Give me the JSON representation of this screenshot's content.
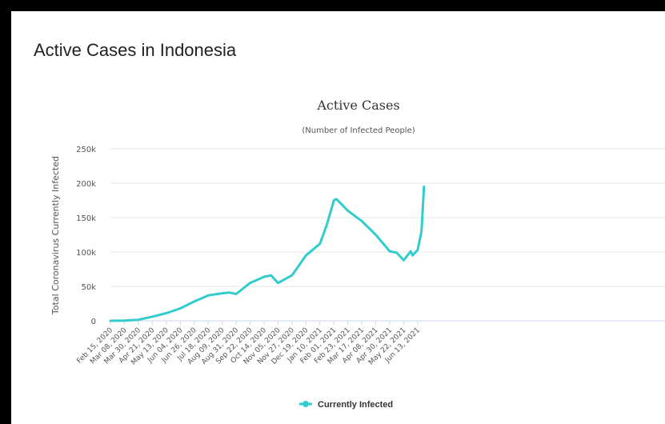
{
  "page": {
    "title": "Active Cases in Indonesia"
  },
  "colors": {
    "series": "#33CCCC",
    "grid": "#E6E6E6",
    "frame": "#000000"
  },
  "chart_data": {
    "type": "line",
    "title": "Active Cases",
    "subtitle": "(Number of Infected People)",
    "ylabel": "Total Coronavirus Currently Infected",
    "xlabel": "",
    "ylim": [
      0,
      250000
    ],
    "yticks": [
      0,
      50000,
      100000,
      150000,
      200000,
      250000
    ],
    "ytick_labels": [
      "0",
      "50k",
      "100k",
      "150k",
      "200k",
      "250k"
    ],
    "x_tick_labels": [
      "Feb 15, 2020",
      "Mar 08, 2020",
      "Mar 30, 2020",
      "Apr 21, 2020",
      "May 13, 2020",
      "Jun 04, 2020",
      "Jun 26, 2020",
      "Jul 18, 2020",
      "Aug 09, 2020",
      "Aug 31, 2020",
      "Sep 22, 2020",
      "Oct 14, 2020",
      "Nov 05, 2020",
      "Nov 27, 2020",
      "Dec 19, 2020",
      "Jan 10, 2021",
      "Feb 01, 2021",
      "Feb 23, 2021",
      "Mar 17, 2021",
      "Apr 08, 2021",
      "Apr 30, 2021",
      "May 22, 2021",
      "Jun 13, 2021"
    ],
    "grid": true,
    "legend_position": "bottom-center",
    "series": [
      {
        "name": "Currently Infected",
        "x": [
          "Feb 15, 2020",
          "Mar 08, 2020",
          "Mar 30, 2020",
          "Apr 21, 2020",
          "May 13, 2020",
          "Jun 04, 2020",
          "Jun 26, 2020",
          "Jul 18, 2020",
          "Aug 09, 2020",
          "Aug 20, 2020",
          "Aug 31, 2020",
          "Sep 22, 2020",
          "Oct 14, 2020",
          "Oct 25, 2020",
          "Nov 05, 2020",
          "Nov 27, 2020",
          "Dec 19, 2020",
          "Jan 10, 2021",
          "Jan 21, 2021",
          "Feb 01, 2021",
          "Feb 05, 2021",
          "Feb 23, 2021",
          "Mar 17, 2021",
          "Apr 08, 2021",
          "Apr 30, 2021",
          "May 11, 2021",
          "May 22, 2021",
          "Jun 02, 2021",
          "Jun 05, 2021",
          "Jun 13, 2021",
          "Jun 19, 2021",
          "Jun 23, 2021"
        ],
        "values": [
          0,
          200,
          1500,
          6000,
          11000,
          18000,
          28000,
          37000,
          40000,
          41000,
          39000,
          55000,
          64000,
          66000,
          55000,
          66000,
          95000,
          112000,
          140000,
          175000,
          177000,
          160000,
          145000,
          125000,
          101000,
          99000,
          88000,
          101000,
          95000,
          103000,
          130000,
          195000
        ]
      }
    ]
  }
}
